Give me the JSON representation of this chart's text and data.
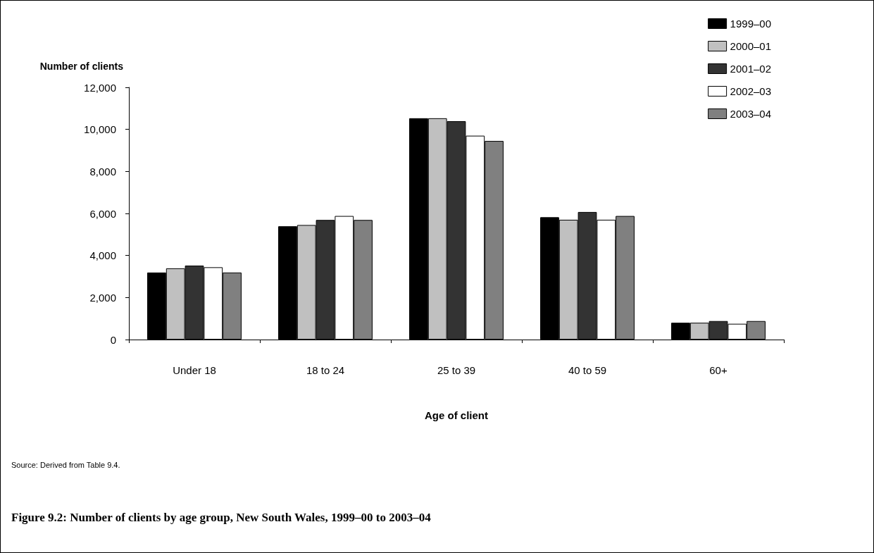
{
  "chart_data": {
    "type": "bar",
    "title": "Figure 9.2: Number of clients by age group, New South Wales, 1999–00 to 2003–04",
    "xlabel": "Age of client",
    "ylabel": "Number of clients",
    "annotations": [
      "Source: Derived from Table 9.4."
    ],
    "categories": [
      "Under 18",
      "18 to 24",
      "25 to 39",
      "40 to 59",
      "60+"
    ],
    "series": [
      {
        "name": "1999–00",
        "color": "#000000",
        "values": [
          3190,
          5390,
          10530,
          5820,
          800
        ]
      },
      {
        "name": "2000–01",
        "color": "#c0c0c0",
        "values": [
          3390,
          5450,
          10530,
          5700,
          800
        ]
      },
      {
        "name": "2001–02",
        "color": "#333333",
        "values": [
          3520,
          5690,
          10390,
          6070,
          880
        ]
      },
      {
        "name": "2002–03",
        "color": "#ffffff",
        "values": [
          3440,
          5880,
          9700,
          5700,
          750
        ]
      },
      {
        "name": "2003–04",
        "color": "#808080",
        "values": [
          3190,
          5690,
          9450,
          5880,
          880
        ]
      }
    ],
    "ylim": [
      0,
      12000
    ],
    "yticks": [
      0,
      {
        "value": 2000,
        "label": "2,000"
      },
      {
        "value": 4000,
        "label": "4,000"
      },
      {
        "value": 6000,
        "label": "6,000"
      },
      {
        "value": 8000,
        "label": "8,000"
      },
      {
        "value": 10000,
        "label": "10,000"
      },
      {
        "value": 12000,
        "label": "12,000"
      }
    ],
    "grid": false,
    "legend": "top right"
  }
}
